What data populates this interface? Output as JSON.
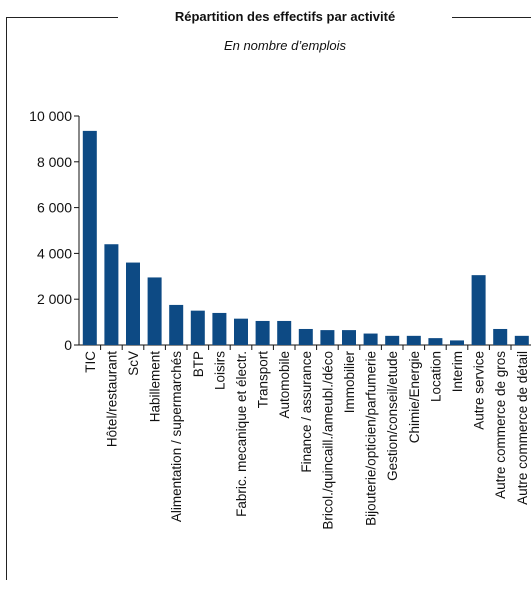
{
  "chart_data": {
    "type": "bar",
    "title": "Répartition des effectifs par activité",
    "subtitle": "En nombre d’emplois",
    "xlabel": "",
    "ylabel": "",
    "ylim": [
      0,
      10000
    ],
    "yticks": [
      0,
      2000,
      4000,
      6000,
      8000,
      10000
    ],
    "ytick_labels": [
      "0",
      "2 000",
      "4 000",
      "6 000",
      "8 000",
      "10 000"
    ],
    "grid": false,
    "bar_color": "#0d4a84",
    "categories": [
      "TIC",
      "Hôtel/restaurant",
      "ScV",
      "Habillement",
      "Alimentation / supermarchés",
      "BTP",
      "Loisirs",
      "Fabric. mecanique et électr.",
      "Transport",
      "Automobile",
      "Finance / assurance",
      "Bricol./quincaill./ameubl./déco",
      "Immobilier",
      "Bijouterie/opticien/parfumerie",
      "Gestion/conseil/etude",
      "Chimie/Energie",
      "Location",
      "Interim",
      "Autre service",
      "Autre commerce de gros",
      "Autre commerce de détail"
    ],
    "values": [
      9350,
      4400,
      3600,
      2950,
      1750,
      1500,
      1400,
      1150,
      1050,
      1050,
      700,
      650,
      650,
      500,
      400,
      400,
      300,
      200,
      3050,
      700,
      400
    ]
  }
}
